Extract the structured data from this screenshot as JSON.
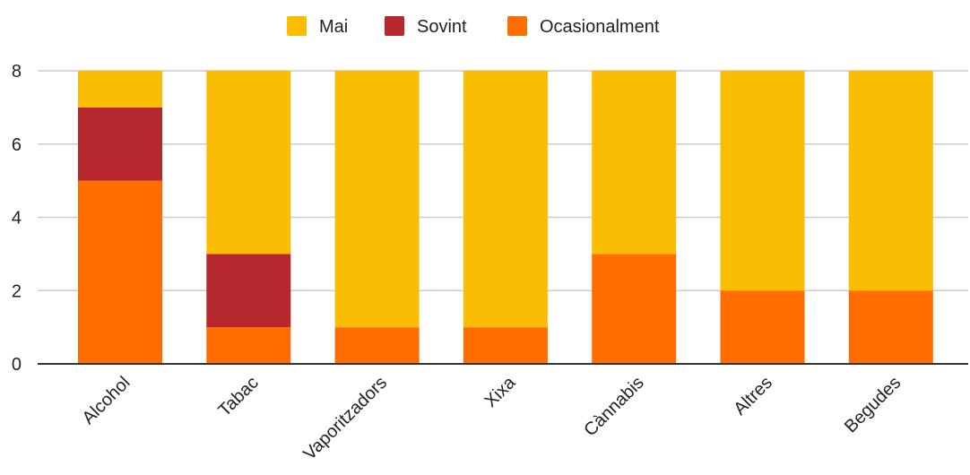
{
  "chart_data": {
    "type": "bar",
    "stacked": true,
    "categories": [
      "Alcohol",
      "Tabac",
      "Vaporitzadors",
      "Xixa",
      "Cànnabis",
      "Altres",
      "Begudes"
    ],
    "series": [
      {
        "name": "Ocasionalment",
        "color": "#ff6d01",
        "values": [
          5,
          1,
          1,
          1,
          3,
          2,
          2
        ]
      },
      {
        "name": "Sovint",
        "color": "#b7282e",
        "values": [
          2,
          2,
          0,
          0,
          0,
          0,
          0
        ]
      },
      {
        "name": "Mai",
        "color": "#fbbc04",
        "values": [
          1,
          5,
          7,
          7,
          5,
          6,
          6
        ]
      }
    ],
    "legend_order": [
      "Mai",
      "Sovint",
      "Ocasionalment"
    ],
    "legend_position": "top",
    "y_ticks": [
      "0",
      "2",
      "4",
      "6",
      "8"
    ],
    "ylim": [
      0,
      8
    ],
    "grid": true,
    "title": "",
    "xlabel": "",
    "ylabel": ""
  }
}
